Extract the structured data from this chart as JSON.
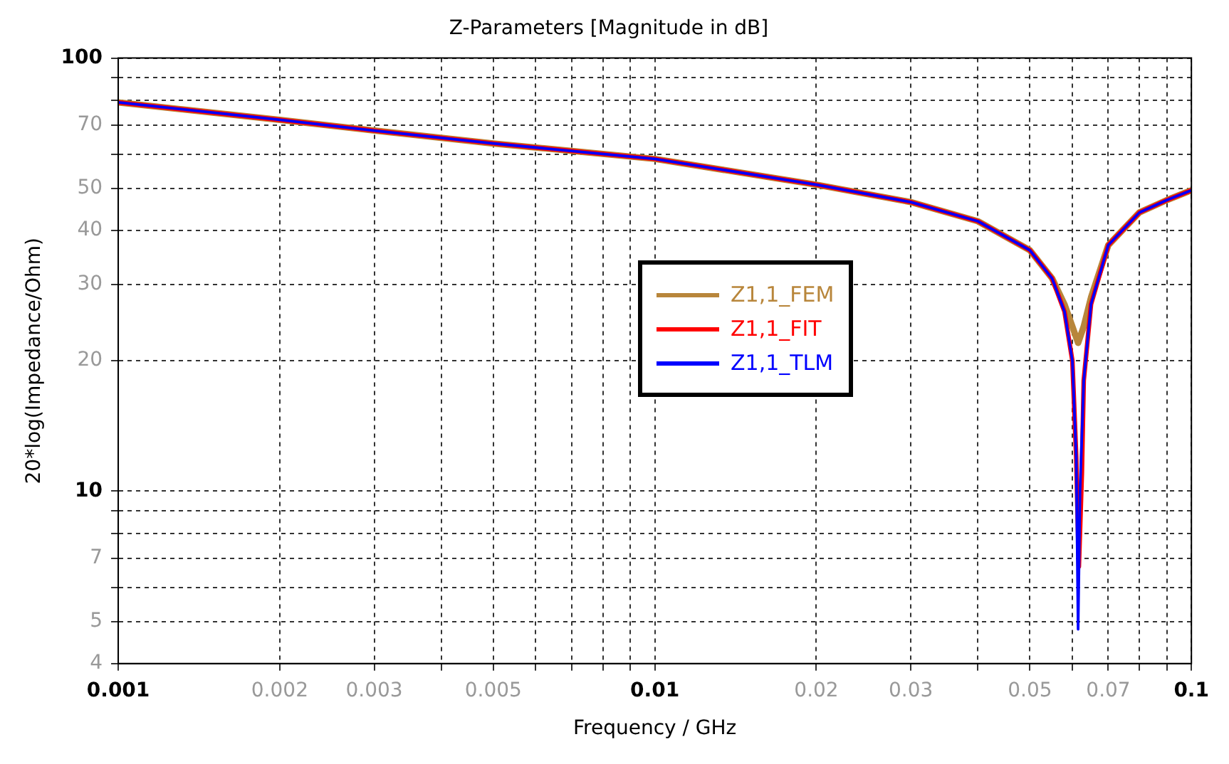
{
  "chart_data": {
    "type": "line",
    "title": "Z-Parameters [Magnitude in dB]",
    "xlabel": "Frequency / GHz",
    "ylabel": "20*log(Impedance/Ohm)",
    "log": "xy",
    "grid": true,
    "legend": "center",
    "marker": "none",
    "line_style": "solid",
    "xlim": [
      0.001,
      0.1
    ],
    "ylim": [
      4,
      100
    ],
    "xticks": [
      0.001,
      0.002,
      0.003,
      {
        "value": 0.004,
        "label": null
      },
      0.005,
      {
        "value": 0.006,
        "label": null
      },
      {
        "value": 0.007,
        "label": null
      },
      {
        "value": 0.008,
        "label": null
      },
      {
        "value": 0.009,
        "label": null
      },
      0.01,
      0.02,
      0.03,
      {
        "value": 0.04,
        "label": null
      },
      0.05,
      {
        "value": 0.06,
        "label": null
      },
      0.07,
      {
        "value": 0.08,
        "label": null
      },
      {
        "value": 0.09,
        "label": null
      },
      0.1
    ],
    "yticks": [
      4,
      5,
      {
        "value": 6,
        "label": null
      },
      7,
      {
        "value": 8,
        "label": null
      },
      {
        "value": 9,
        "label": null
      },
      10,
      20,
      30,
      40,
      50,
      {
        "value": 60,
        "label": null
      },
      70,
      {
        "value": 80,
        "label": null
      },
      {
        "value": 90,
        "label": null
      },
      100
    ],
    "series": [
      {
        "name": "Z1,1_FEM",
        "color": "#b8863b",
        "x": [
          0.001,
          0.002,
          0.003,
          0.005,
          0.01,
          0.02,
          0.03,
          0.04,
          0.05,
          0.055,
          0.058,
          0.06,
          0.0615,
          0.063,
          0.065,
          0.07,
          0.08,
          0.09,
          0.1
        ],
        "values": [
          79,
          72,
          68,
          63.5,
          58.5,
          51,
          46.5,
          42,
          36,
          31,
          27,
          24,
          22,
          24,
          28,
          37,
          44,
          47,
          49.5
        ]
      },
      {
        "name": "Z1,1_FIT",
        "color": "#ff0000",
        "x": [
          0.001,
          0.002,
          0.003,
          0.005,
          0.01,
          0.02,
          0.03,
          0.04,
          0.05,
          0.055,
          0.058,
          0.06,
          0.061,
          0.0617,
          0.0625,
          0.063,
          0.065,
          0.07,
          0.08,
          0.09,
          0.1
        ],
        "values": [
          79,
          72,
          68,
          63.5,
          58.5,
          51,
          46.5,
          42,
          36,
          31,
          26,
          20,
          12,
          6.7,
          11,
          18,
          27,
          37,
          44,
          47,
          49.5
        ]
      },
      {
        "name": "Z1,1_TLM",
        "color": "#0000ff",
        "x": [
          0.001,
          0.002,
          0.003,
          0.005,
          0.01,
          0.02,
          0.03,
          0.04,
          0.05,
          0.055,
          0.058,
          0.06,
          0.061,
          0.0615,
          0.062,
          0.063,
          0.065,
          0.07,
          0.08,
          0.09,
          0.1
        ],
        "values": [
          79,
          72,
          68,
          63.5,
          58.5,
          51,
          46.5,
          42,
          36,
          31,
          26,
          20,
          12,
          4.8,
          10,
          18,
          27,
          37,
          44,
          47,
          49.5
        ]
      }
    ]
  }
}
